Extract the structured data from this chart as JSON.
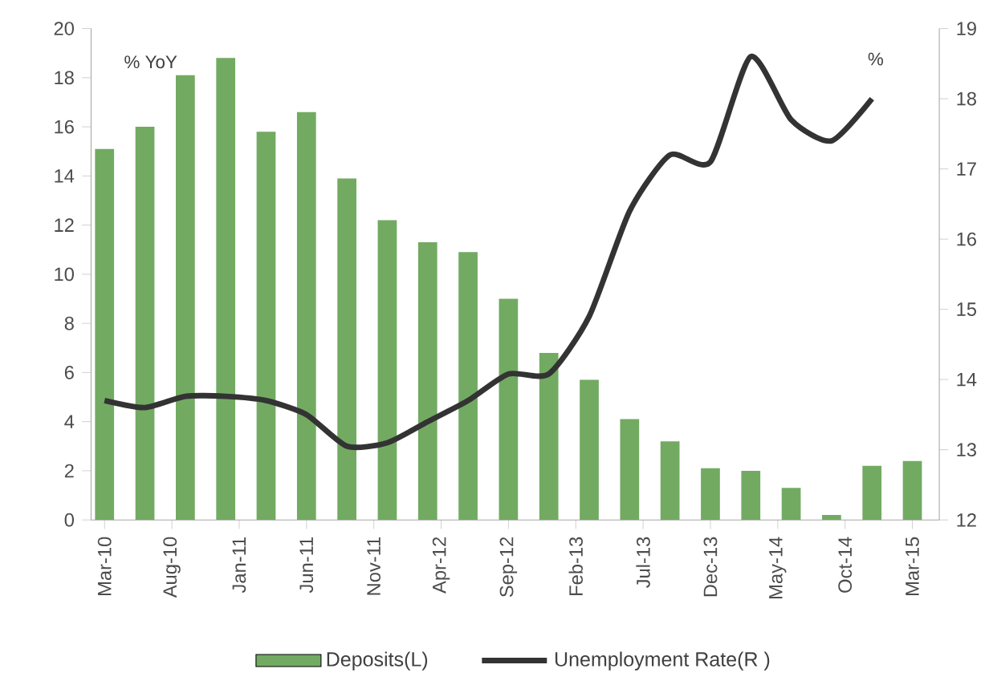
{
  "chart_data": {
    "type": "bar",
    "ylabel": "% YoY",
    "y2label": "%",
    "x": [
      "2010-03",
      "2010-06",
      "2010-09",
      "2010-12",
      "2011-03",
      "2011-06",
      "2011-09",
      "2011-12",
      "2012-03",
      "2012-06",
      "2012-09",
      "2012-12",
      "2013-03",
      "2013-06",
      "2013-09",
      "2013-12",
      "2014-03",
      "2014-06",
      "2014-09",
      "2014-12",
      "2015-03"
    ],
    "xlim": [
      "2010-02",
      "2015-05"
    ],
    "xticks": [
      {
        "value": "2010-03",
        "label": "Mar-10"
      },
      {
        "value": "2010-08",
        "label": "Aug-10"
      },
      {
        "value": "2011-01",
        "label": "Jan-11"
      },
      {
        "value": "2011-06",
        "label": "Jun-11"
      },
      {
        "value": "2011-11",
        "label": "Nov-11"
      },
      {
        "value": "2012-04",
        "label": "Apr-12"
      },
      {
        "value": "2012-09",
        "label": "Sep-12"
      },
      {
        "value": "2013-02",
        "label": "Feb-13"
      },
      {
        "value": "2013-07",
        "label": "Jul-13"
      },
      {
        "value": "2013-12",
        "label": "Dec-13"
      },
      {
        "value": "2014-05",
        "label": "May-14"
      },
      {
        "value": "2014-10",
        "label": "Oct-14"
      },
      {
        "value": "2015-03",
        "label": "Mar-15"
      }
    ],
    "ylim": [
      0,
      20
    ],
    "yticks": [
      0,
      2,
      4,
      6,
      8,
      10,
      12,
      14,
      16,
      18,
      20
    ],
    "y2lim": [
      12,
      19
    ],
    "y2ticks": [
      12,
      13,
      14,
      15,
      16,
      17,
      18,
      19
    ],
    "legend": "bottom",
    "series": [
      {
        "name": "Deposits(L)",
        "color": "#72aa62",
        "values": [
          15.1,
          16.0,
          18.1,
          18.8,
          15.8,
          16.6,
          13.9,
          12.2,
          11.3,
          10.9,
          9.0,
          6.8,
          5.7,
          4.1,
          3.2,
          2.1,
          2.0,
          1.3,
          0.2,
          2.2,
          2.4
        ]
      },
      {
        "name": "Unemployment Rate(R )",
        "type": "line",
        "axis": "y2",
        "color": "#333333",
        "x": [
          "2010-03",
          "2010-06",
          "2010-09",
          "2010-12",
          "2011-03",
          "2011-06",
          "2011-09",
          "2011-12",
          "2012-03",
          "2012-06",
          "2012-09",
          "2012-12",
          "2013-03",
          "2013-06",
          "2013-09",
          "2013-12",
          "2014-03",
          "2014-06",
          "2014-09",
          "2014-12"
        ],
        "values": [
          13.7,
          13.6,
          13.76,
          13.76,
          13.7,
          13.5,
          13.05,
          13.1,
          13.4,
          13.7,
          14.08,
          14.08,
          14.9,
          16.4,
          17.2,
          17.1,
          18.6,
          17.7,
          17.4,
          18.0
        ]
      }
    ]
  }
}
